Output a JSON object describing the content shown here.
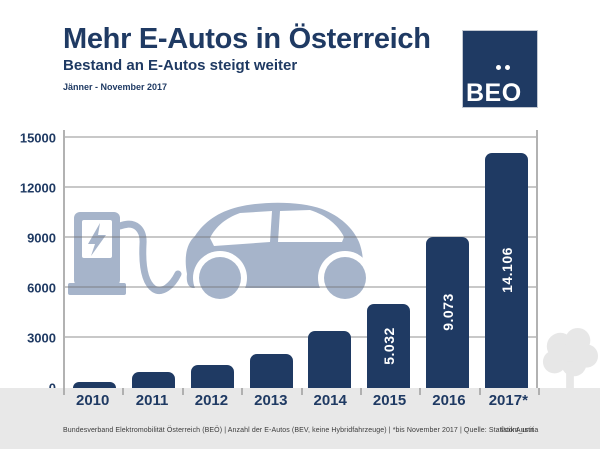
{
  "header": {
    "title": "Mehr E-Autos in Österreich",
    "subtitle": "Bestand an E-Autos steigt weiter",
    "period": "Jänner - November 2017"
  },
  "logo": {
    "text": "BEO",
    "umlaut_dots": 2
  },
  "chart_data": {
    "type": "bar",
    "title": "Mehr E-Autos in Österreich",
    "subtitle": "Bestand an E-Autos steigt weiter",
    "categories": [
      "2010",
      "2011",
      "2012",
      "2013",
      "2014",
      "2015",
      "2016",
      "2017*"
    ],
    "values": [
      350,
      990,
      1400,
      2050,
      3400,
      5032,
      9073,
      14106
    ],
    "bar_labels": [
      "",
      "",
      "",
      "",
      "",
      "5.032",
      "9.073",
      "14.106"
    ],
    "xlabel": "",
    "ylabel": "",
    "ylim": [
      0,
      15000
    ],
    "yticks": [
      0,
      3000,
      6000,
      9000,
      12000,
      15000
    ],
    "grid": true,
    "legend": false,
    "bar_label_rotation": -90
  },
  "footer": {
    "source": "Bundesverband Elektromobilität Österreich (BEÖ) | Anzahl der E-Autos (BEV, keine Hybridfahrzeuge) | *bis November 2017 | Quelle: Statistik Austria",
    "credit": "©com_unit"
  },
  "colors": {
    "navy": "#1f3a63",
    "icon_blue": "#a6b4ca",
    "axis_gray": "#b2b2b2",
    "band_gray": "#e8e8e8",
    "tree_gray": "#e7e7e7",
    "bar_value_text": "#ffffff"
  },
  "icons": {
    "ev-charging-station-and-car-icon": "svg-silhouette",
    "lightning-bolt-icon": "svg-shape",
    "tree-icon": "svg-silhouette",
    "logo-umlaut-dots": "css-circles"
  }
}
